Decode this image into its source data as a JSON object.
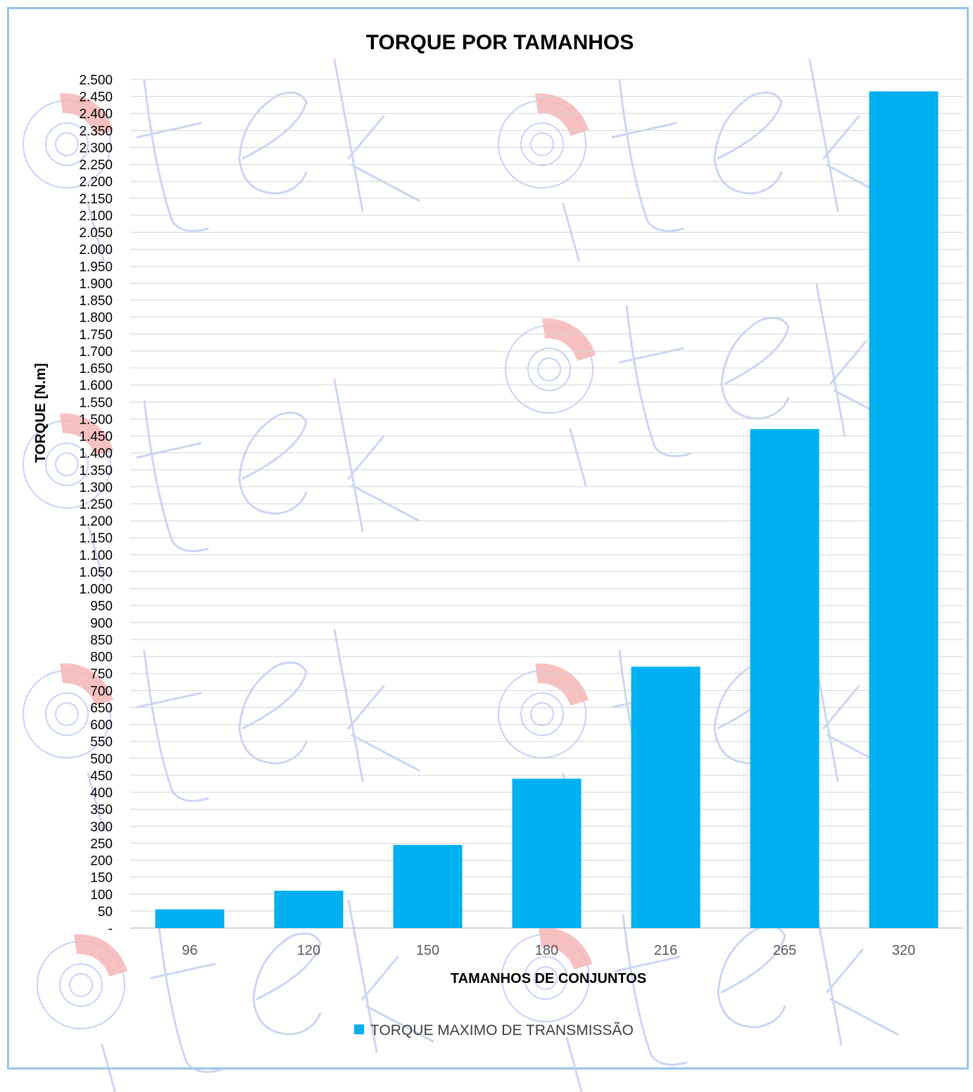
{
  "chart_data": {
    "type": "bar",
    "title": "TORQUE POR TAMANHOS",
    "xlabel": "TAMANHOS  DE CONJUNTOS",
    "ylabel": "TORQUE [N.m]",
    "categories": [
      "96",
      "120",
      "150",
      "180",
      "216",
      "265",
      "320"
    ],
    "series": [
      {
        "name": "TORQUE MAXIMO DE TRANSMISSÃO",
        "values": [
          55,
          110,
          245,
          440,
          770,
          1470,
          2465
        ]
      }
    ],
    "ylim": [
      0,
      2500
    ],
    "ytick_step": 50,
    "ytick_labels": [
      "-",
      "50",
      "100",
      "150",
      "200",
      "250",
      "300",
      "350",
      "400",
      "450",
      "500",
      "550",
      "600",
      "650",
      "700",
      "750",
      "800",
      "850",
      "900",
      "950",
      "1.000",
      "1.050",
      "1.100",
      "1.150",
      "1.200",
      "1.250",
      "1.300",
      "1.350",
      "1.400",
      "1.450",
      "1.500",
      "1.550",
      "1.600",
      "1.650",
      "1.700",
      "1.750",
      "1.800",
      "1.850",
      "1.900",
      "1.950",
      "2.000",
      "2.050",
      "2.100",
      "2.150",
      "2.200",
      "2.250",
      "2.300",
      "2.350",
      "2.400",
      "2.450",
      "2.500"
    ],
    "grid": true,
    "legend_position": "bottom",
    "colors": {
      "bar": "#00b0f0",
      "gridline": "#d4d4d4",
      "frame": "#9cc3ea"
    }
  },
  "watermark": {
    "brand": "iteck"
  }
}
